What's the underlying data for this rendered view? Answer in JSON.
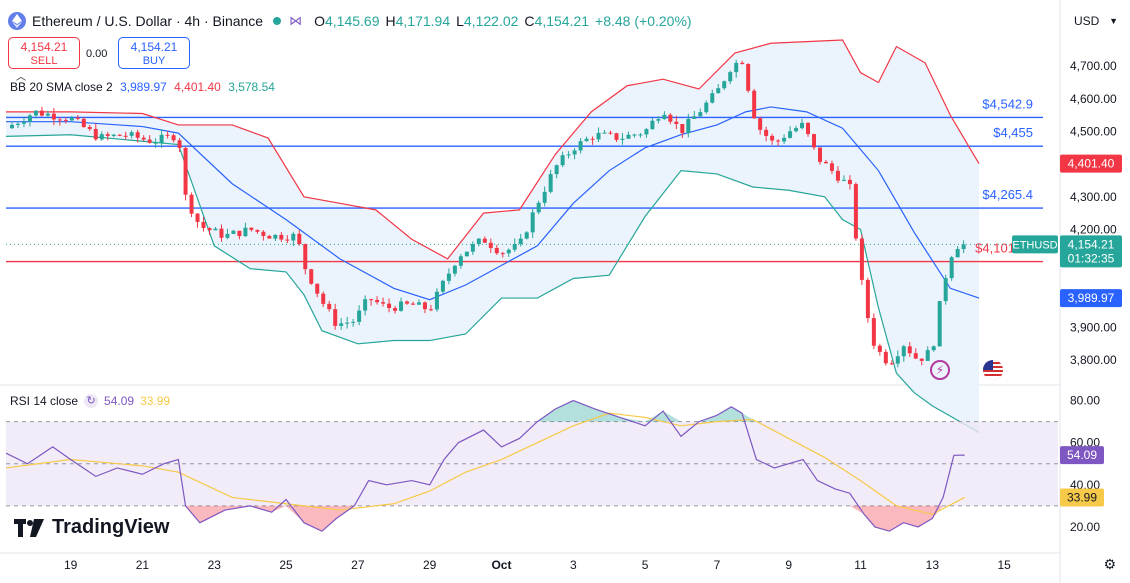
{
  "header": {
    "title": "Ethereum / U.S. Dollar · 4h · Binance",
    "open_label": "O",
    "open": "4,145.69",
    "high_label": "H",
    "high": "4,171.94",
    "low_label": "L",
    "low": "4,122.02",
    "close_label": "C",
    "close": "4,154.21",
    "change": "+8.48 (+0.20%)"
  },
  "trade": {
    "sell_price": "4,154.21",
    "sell_label": "SELL",
    "buy_price": "4,154.21",
    "buy_label": "BUY",
    "spread": "0.00"
  },
  "currency_select": "USD",
  "legend": {
    "bb_label": "BB 20 SMA close 2",
    "bb_basis": "3,989.97",
    "bb_upper": "4,401.40",
    "bb_lower": "3,578.54",
    "rsi_label": "RSI 14 close",
    "rsi_value": "54.09",
    "rsi_ma": "33.99"
  },
  "logo_text": "TradingView",
  "colors": {
    "up": "#26a69a",
    "down": "#f23645",
    "bb_basis": "#2962ff",
    "bb_upper": "#f23645",
    "bb_lower": "#26a69a",
    "bb_fill": "#e9f2fc",
    "rsi_line": "#7e57c2",
    "rsi_ma": "#f7c948",
    "rsi_band": "#ede7f6",
    "hline_blue": "#2962ff",
    "hline_red": "#f23645"
  },
  "chart_data": {
    "type": "candlestick",
    "symbol": "ETHUSD",
    "price_axis": {
      "range": [
        3730,
        4780
      ],
      "ticks": [
        3800,
        3900,
        4000,
        4100,
        4200,
        4300,
        4400,
        4500,
        4600,
        4700
      ],
      "tick_labels": [
        "3,800.00",
        "3,900.00",
        "4,000.00",
        "4,100.00",
        "4,200.00",
        "4,300.00",
        "4,400.00",
        "4,500.00",
        "4,600.00",
        "4,700.00"
      ]
    },
    "x_axis": {
      "labels": [
        "19",
        "21",
        "23",
        "25",
        "27",
        "29",
        "Oct",
        "3",
        "5",
        "7",
        "9",
        "11",
        "13",
        "15"
      ],
      "label_days": [
        0,
        2,
        4,
        6,
        8,
        10,
        12,
        14,
        16,
        18,
        20,
        22,
        24,
        26
      ],
      "range_days": [
        -1.8,
        27.5
      ]
    },
    "horizontal_levels": [
      {
        "value": 4542.9,
        "label": "$4,542.9",
        "color": "#2962ff"
      },
      {
        "value": 4455,
        "label": "$4,455",
        "color": "#2962ff"
      },
      {
        "value": 4265.4,
        "label": "$4,265.4",
        "color": "#2962ff"
      },
      {
        "value": 4101.88,
        "label": "$4,101.88",
        "color": "#f23645"
      }
    ],
    "price_tags": [
      {
        "value": 4401.4,
        "text": "4,401.40",
        "bg": "#f23645",
        "fg": "#ffffff"
      },
      {
        "value": 4154.21,
        "text": "4,154.21",
        "sub": "01:32:35",
        "bg": "#26a69a",
        "fg": "#ffffff",
        "symbol_label": "ETHUSD"
      },
      {
        "value": 3989.97,
        "text": "3,989.97",
        "bg": "#2962ff",
        "fg": "#ffffff"
      }
    ],
    "close_path": [
      [
        -1.8,
        4510
      ],
      [
        -1.0,
        4560
      ],
      [
        0.0,
        4540
      ],
      [
        0.8,
        4480
      ],
      [
        1.5,
        4490
      ],
      [
        2.3,
        4470
      ],
      [
        3.0,
        4490
      ],
      [
        3.2,
        4300
      ],
      [
        3.6,
        4210
      ],
      [
        4.3,
        4180
      ],
      [
        5.0,
        4200
      ],
      [
        5.6,
        4180
      ],
      [
        6.3,
        4180
      ],
      [
        6.5,
        4090
      ],
      [
        7.0,
        3980
      ],
      [
        7.4,
        3910
      ],
      [
        7.9,
        3920
      ],
      [
        8.3,
        3990
      ],
      [
        8.8,
        3960
      ],
      [
        9.5,
        3970
      ],
      [
        10.0,
        3955
      ],
      [
        10.4,
        4040
      ],
      [
        10.8,
        4120
      ],
      [
        11.5,
        4170
      ],
      [
        12.0,
        4130
      ],
      [
        12.5,
        4150
      ],
      [
        13.0,
        4280
      ],
      [
        13.5,
        4390
      ],
      [
        14.0,
        4450
      ],
      [
        14.6,
        4490
      ],
      [
        15.3,
        4480
      ],
      [
        16.0,
        4500
      ],
      [
        16.5,
        4570
      ],
      [
        17.0,
        4500
      ],
      [
        17.5,
        4560
      ],
      [
        18.0,
        4620
      ],
      [
        18.4,
        4700
      ],
      [
        18.7,
        4720
      ],
      [
        19.1,
        4520
      ],
      [
        19.6,
        4460
      ],
      [
        20.0,
        4500
      ],
      [
        20.4,
        4520
      ],
      [
        20.8,
        4420
      ],
      [
        21.3,
        4370
      ],
      [
        21.7,
        4330
      ],
      [
        22.1,
        3980
      ],
      [
        22.4,
        3840
      ],
      [
        22.8,
        3790
      ],
      [
        23.2,
        3850
      ],
      [
        23.6,
        3800
      ],
      [
        24.0,
        3830
      ],
      [
        24.3,
        4030
      ],
      [
        24.6,
        4150
      ],
      [
        24.9,
        4154.21
      ]
    ],
    "bb_basis": [
      [
        -1.8,
        4530
      ],
      [
        0,
        4530
      ],
      [
        2,
        4515
      ],
      [
        3,
        4495
      ],
      [
        4.5,
        4340
      ],
      [
        6,
        4230
      ],
      [
        7.5,
        4110
      ],
      [
        9,
        4020
      ],
      [
        10,
        3985
      ],
      [
        11,
        4030
      ],
      [
        12,
        4090
      ],
      [
        13,
        4150
      ],
      [
        14,
        4280
      ],
      [
        15,
        4380
      ],
      [
        16,
        4450
      ],
      [
        17,
        4490
      ],
      [
        18,
        4520
      ],
      [
        18.8,
        4560
      ],
      [
        19.5,
        4575
      ],
      [
        20.5,
        4560
      ],
      [
        21.5,
        4510
      ],
      [
        22.5,
        4380
      ],
      [
        23.5,
        4190
      ],
      [
        24.5,
        4020
      ],
      [
        25.3,
        3989.97
      ]
    ],
    "bb_upper": [
      [
        -1.8,
        4560
      ],
      [
        0,
        4560
      ],
      [
        2,
        4555
      ],
      [
        3,
        4520
      ],
      [
        4.5,
        4520
      ],
      [
        5.5,
        4480
      ],
      [
        6.5,
        4300
      ],
      [
        7.5,
        4280
      ],
      [
        8.5,
        4260
      ],
      [
        9.5,
        4170
      ],
      [
        10.5,
        4110
      ],
      [
        11.5,
        4250
      ],
      [
        12.5,
        4260
      ],
      [
        13.5,
        4430
      ],
      [
        14.5,
        4560
      ],
      [
        15.5,
        4640
      ],
      [
        16.5,
        4660
      ],
      [
        17.5,
        4630
      ],
      [
        18.5,
        4740
      ],
      [
        19.5,
        4770
      ],
      [
        20.5,
        4775
      ],
      [
        21.5,
        4780
      ],
      [
        22.0,
        4680
      ],
      [
        22.5,
        4650
      ],
      [
        23.0,
        4760
      ],
      [
        23.8,
        4710
      ],
      [
        24.5,
        4550
      ],
      [
        25.3,
        4401.4
      ]
    ],
    "bb_lower": [
      [
        -1.8,
        4485
      ],
      [
        0,
        4490
      ],
      [
        2,
        4470
      ],
      [
        3,
        4460
      ],
      [
        4.0,
        4150
      ],
      [
        5.0,
        4080
      ],
      [
        6.0,
        4070
      ],
      [
        6.5,
        4000
      ],
      [
        7.0,
        3890
      ],
      [
        8.0,
        3850
      ],
      [
        9.0,
        3860
      ],
      [
        10.0,
        3860
      ],
      [
        11.0,
        3880
      ],
      [
        12.0,
        3990
      ],
      [
        13.0,
        3990
      ],
      [
        14.0,
        4050
      ],
      [
        15.0,
        4060
      ],
      [
        16.0,
        4240
      ],
      [
        17.0,
        4380
      ],
      [
        18.0,
        4370
      ],
      [
        19.0,
        4330
      ],
      [
        20.0,
        4320
      ],
      [
        21.0,
        4300
      ],
      [
        21.5,
        4230
      ],
      [
        22.0,
        4200
      ],
      [
        22.5,
        3960
      ],
      [
        23.0,
        3760
      ],
      [
        23.5,
        3700
      ],
      [
        24.0,
        3660
      ],
      [
        25.3,
        3578.54
      ]
    ],
    "rsi": {
      "axis_range": [
        10,
        85
      ],
      "ticks": [
        20,
        40,
        60,
        80
      ],
      "tick_labels": [
        "20.00",
        "40.00",
        "60.00",
        "80.00"
      ],
      "band": [
        30,
        70
      ],
      "midline": 50,
      "values": [
        [
          -1.8,
          55
        ],
        [
          -1.2,
          50
        ],
        [
          -0.5,
          58
        ],
        [
          0.0,
          52
        ],
        [
          0.7,
          44
        ],
        [
          1.3,
          48
        ],
        [
          2.0,
          45
        ],
        [
          2.6,
          50
        ],
        [
          3.0,
          52
        ],
        [
          3.2,
          30
        ],
        [
          3.6,
          22
        ],
        [
          4.3,
          28
        ],
        [
          5.0,
          30
        ],
        [
          5.6,
          27
        ],
        [
          6.0,
          33
        ],
        [
          6.5,
          22
        ],
        [
          7.0,
          18
        ],
        [
          7.4,
          24
        ],
        [
          7.9,
          30
        ],
        [
          8.3,
          42
        ],
        [
          8.8,
          40
        ],
        [
          9.5,
          42
        ],
        [
          10.0,
          40
        ],
        [
          10.4,
          52
        ],
        [
          10.8,
          60
        ],
        [
          11.5,
          66
        ],
        [
          12.0,
          58
        ],
        [
          12.5,
          62
        ],
        [
          13.0,
          70
        ],
        [
          13.5,
          76
        ],
        [
          14.0,
          80
        ],
        [
          14.6,
          76
        ],
        [
          15.3,
          72
        ],
        [
          16.0,
          68
        ],
        [
          16.5,
          75
        ],
        [
          17.0,
          63
        ],
        [
          17.5,
          70
        ],
        [
          18.0,
          73
        ],
        [
          18.4,
          77
        ],
        [
          18.7,
          74
        ],
        [
          19.1,
          52
        ],
        [
          19.6,
          48
        ],
        [
          20.0,
          50
        ],
        [
          20.4,
          52
        ],
        [
          20.8,
          42
        ],
        [
          21.3,
          38
        ],
        [
          21.7,
          36
        ],
        [
          22.1,
          26
        ],
        [
          22.4,
          20
        ],
        [
          22.8,
          18
        ],
        [
          23.2,
          22
        ],
        [
          23.6,
          20
        ],
        [
          24.0,
          24
        ],
        [
          24.3,
          34
        ],
        [
          24.6,
          54
        ],
        [
          24.9,
          54.09
        ]
      ],
      "ma": [
        [
          -1.8,
          48
        ],
        [
          0,
          52
        ],
        [
          2,
          49
        ],
        [
          3,
          46
        ],
        [
          4.5,
          34
        ],
        [
          6,
          31
        ],
        [
          7.5,
          28
        ],
        [
          9,
          31
        ],
        [
          10,
          37
        ],
        [
          11,
          46
        ],
        [
          12,
          52
        ],
        [
          13,
          60
        ],
        [
          14,
          68
        ],
        [
          15,
          74
        ],
        [
          16,
          72
        ],
        [
          17,
          68
        ],
        [
          18,
          70
        ],
        [
          19,
          71
        ],
        [
          20,
          62
        ],
        [
          21,
          53
        ],
        [
          22,
          42
        ],
        [
          23,
          30
        ],
        [
          24,
          26
        ],
        [
          24.9,
          33.99
        ]
      ]
    }
  }
}
